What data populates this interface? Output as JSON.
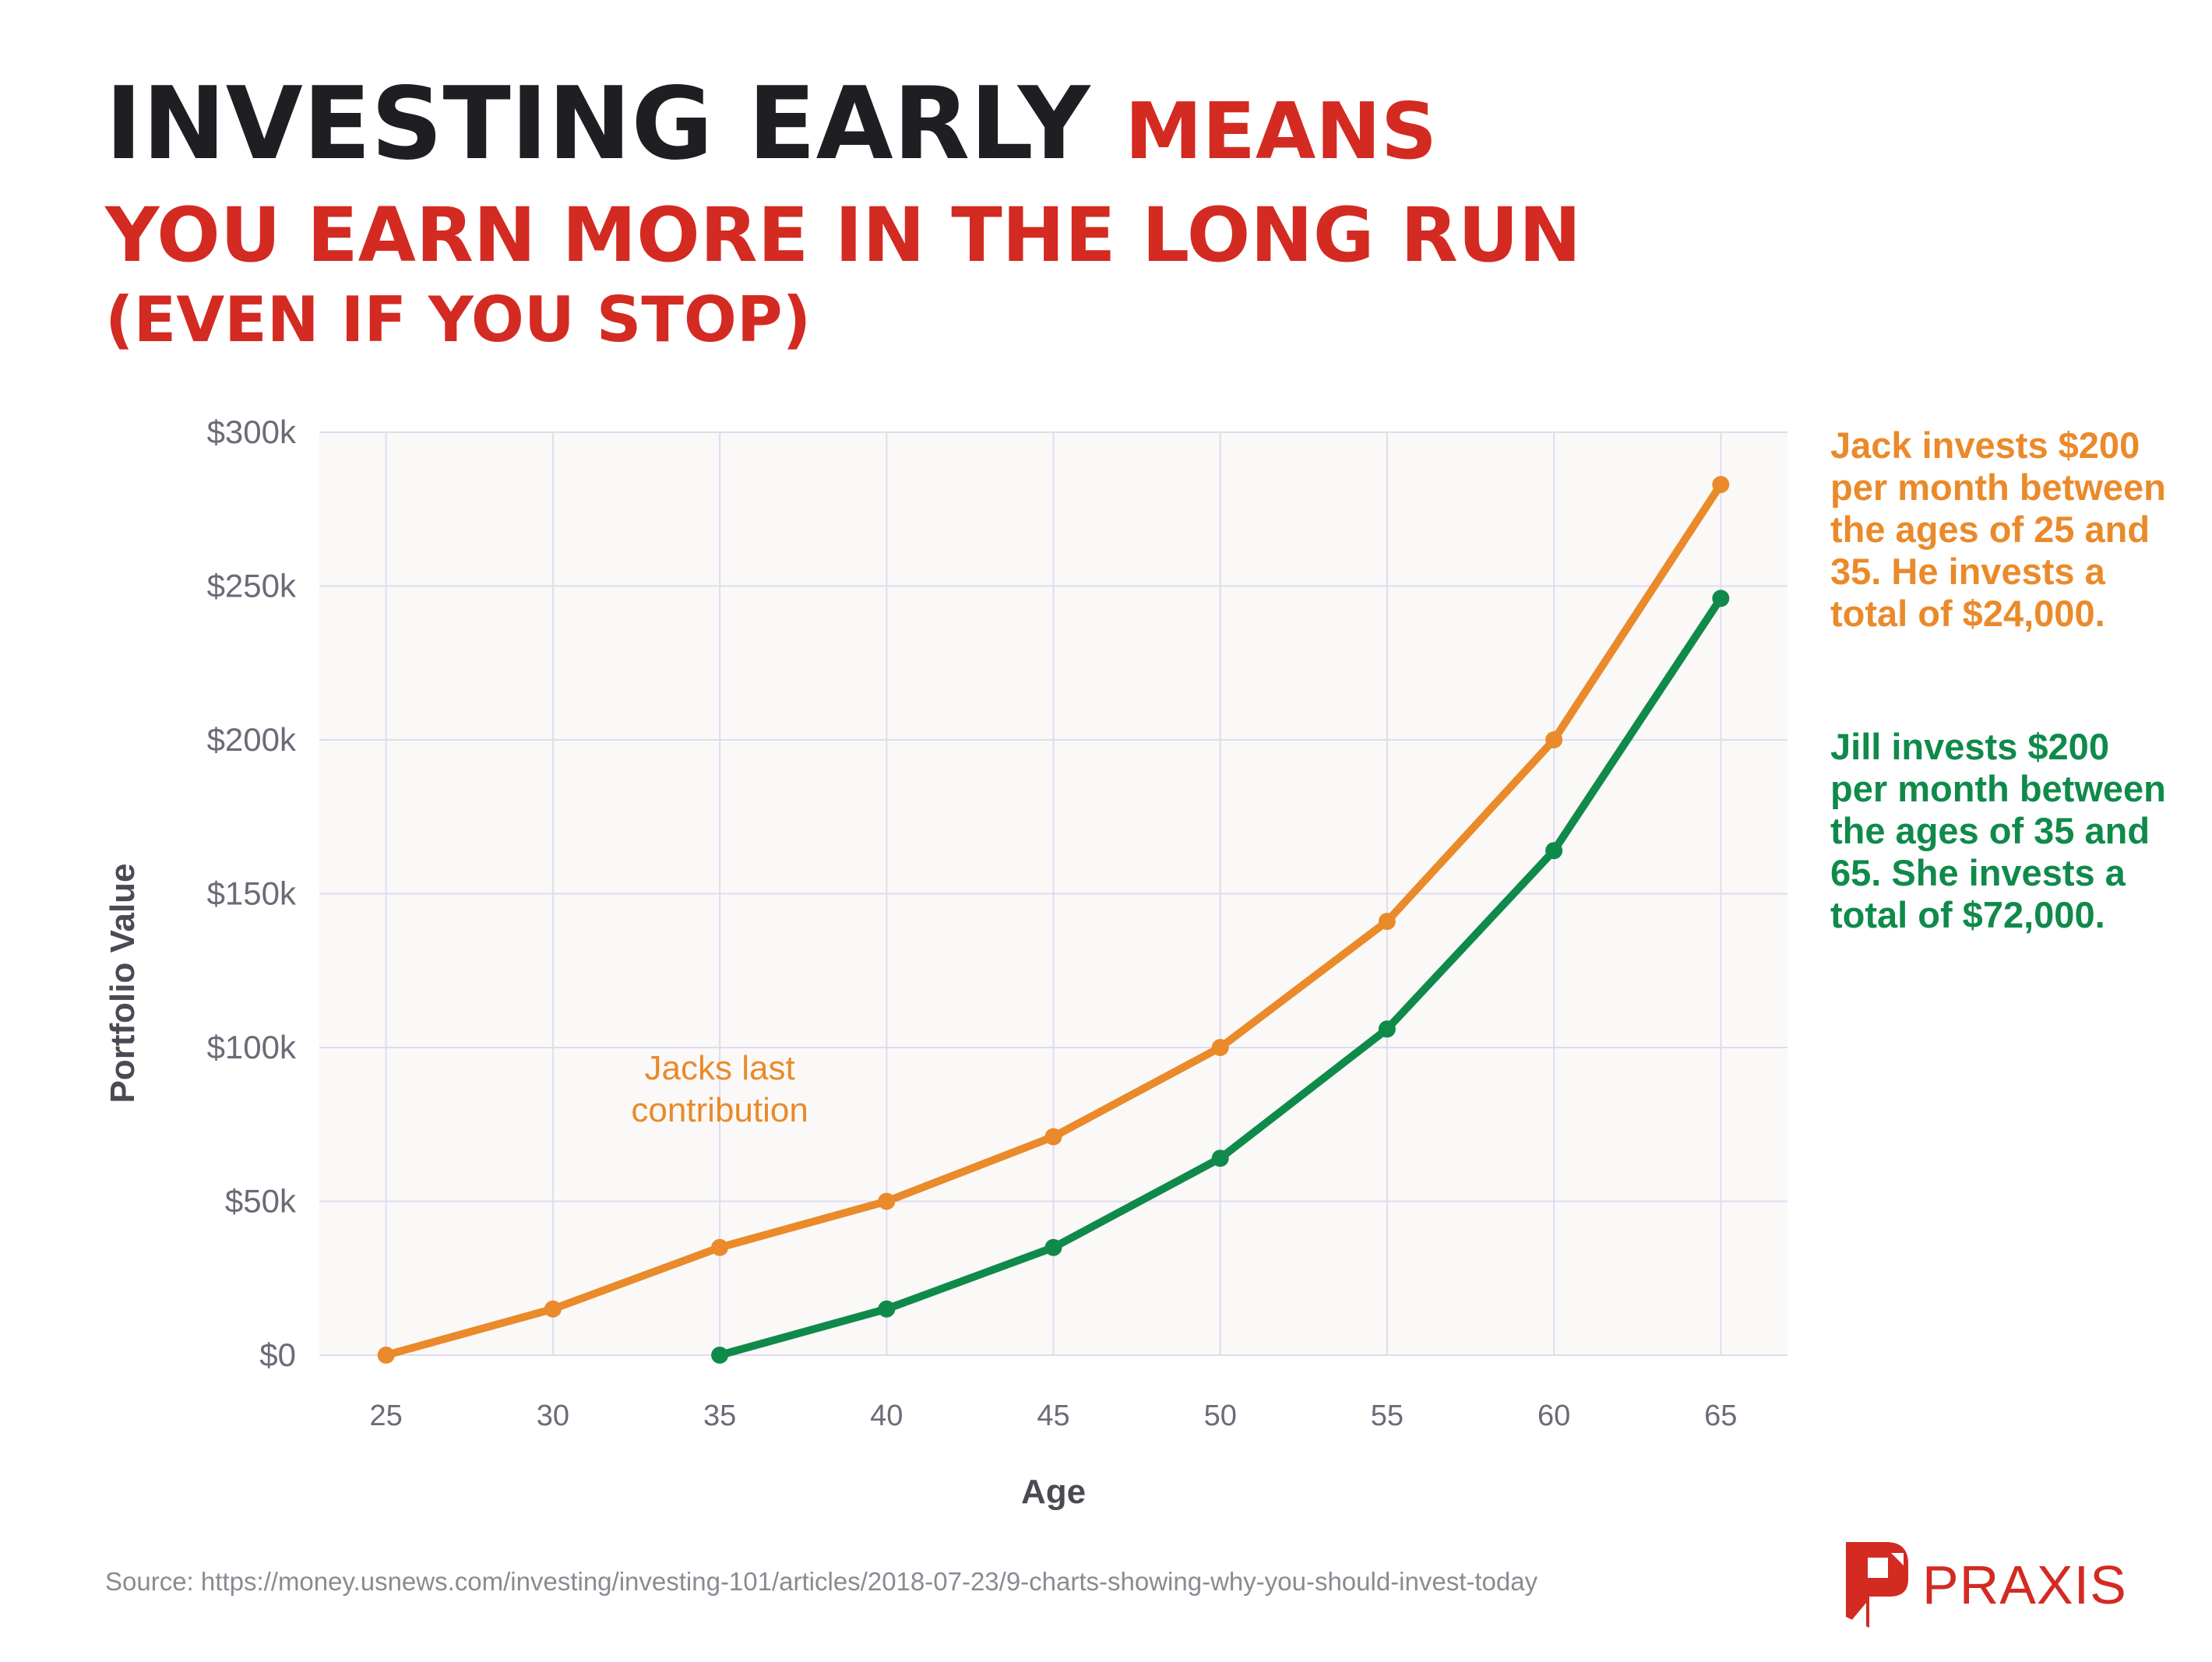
{
  "title": {
    "line1_dark": "INVESTING EARLY",
    "line1_red": "MEANS",
    "line2": "YOU EARN MORE IN THE LONG RUN",
    "line3": "(EVEN IF YOU STOP)"
  },
  "colors": {
    "jack": "#ea8a2a",
    "jill": "#0f8a4a",
    "accent_red": "#d32a22",
    "title_dark": "#1f1e22",
    "plot_bg": "#faf9f8",
    "grid": "#e0dcef",
    "axis_text": "#6b6b78"
  },
  "notes": {
    "jack": "Jack invests $200 per month between the ages of 25 and 35. He invests a total of $24,000.",
    "jill": "Jill invests $200 per month between the ages of 35 and 65. She invests a total of $72,000."
  },
  "source": "Source: https://money.usnews.com/investing/investing-101/articles/2018-07-23/9-charts-showing-why-you-should-invest-today",
  "logo": {
    "name": "PRAXIS",
    "icon": "praxis-p-logo-icon"
  },
  "chart_data": {
    "type": "line",
    "xlabel": "Age",
    "ylabel": "Portfolio Value",
    "x_ticks": [
      25,
      30,
      35,
      40,
      45,
      50,
      55,
      60,
      65
    ],
    "y_ticks": [
      0,
      50000,
      100000,
      150000,
      200000,
      250000,
      300000
    ],
    "y_tick_labels": [
      "$0",
      "$50k",
      "$100k",
      "$150k",
      "$200k",
      "$250k",
      "$300k"
    ],
    "xlim": [
      23,
      67
    ],
    "ylim": [
      0,
      300000
    ],
    "grid": true,
    "series": [
      {
        "key": "jack",
        "x": [
          25,
          30,
          35,
          40,
          45,
          50,
          55,
          60,
          65
        ],
        "values": [
          0,
          15000,
          35000,
          50000,
          71000,
          100000,
          141000,
          200000,
          283000
        ]
      },
      {
        "key": "jill",
        "x": [
          35,
          40,
          45,
          50,
          55,
          60,
          65
        ],
        "values": [
          0,
          15000,
          35000,
          64000,
          106000,
          164000,
          246000
        ]
      }
    ],
    "annotations": [
      {
        "text_line1": "Jacks last",
        "text_line2": "contribution",
        "x": 35,
        "y": 82000
      }
    ]
  }
}
